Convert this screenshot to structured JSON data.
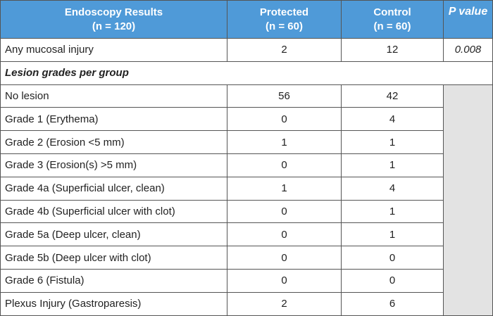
{
  "header": {
    "col1": {
      "line1": "Endoscopy Results",
      "line2": "(n = 120)"
    },
    "col2": {
      "line1": "Protected",
      "line2": "(n = 60)"
    },
    "col3": {
      "line1": "Control",
      "line2": "(n = 60)"
    },
    "col4": {
      "line1": "P value"
    }
  },
  "summary_row": {
    "label": "Any mucosal injury",
    "protected": "2",
    "control": "12",
    "p_value": "0.008"
  },
  "section_label": "Lesion grades per group",
  "rows": [
    {
      "label": "No lesion",
      "protected": "56",
      "control": "42"
    },
    {
      "label": "Grade 1 (Erythema)",
      "protected": "0",
      "control": "4"
    },
    {
      "label": "Grade 2 (Erosion <5 mm)",
      "protected": "1",
      "control": "1"
    },
    {
      "label": "Grade 3 (Erosion(s) >5 mm)",
      "protected": "0",
      "control": "1"
    },
    {
      "label": "Grade 4a (Superficial ulcer, clean)",
      "protected": "1",
      "control": "4"
    },
    {
      "label": "Grade 4b (Superficial ulcer with clot)",
      "protected": "0",
      "control": "1"
    },
    {
      "label": "Grade 5a (Deep ulcer, clean)",
      "protected": "0",
      "control": "1"
    },
    {
      "label": "Grade 5b (Deep ulcer with clot)",
      "protected": "0",
      "control": "0"
    },
    {
      "label": "Grade 6 (Fistula)",
      "protected": "0",
      "control": "0"
    },
    {
      "label": "Plexus Injury (Gastroparesis)",
      "protected": "2",
      "control": "6"
    }
  ],
  "colors": {
    "header_bg": "#4f9ad8",
    "header_text": "#ffffff",
    "shaded_bg": "#e3e3e3",
    "border": "#555555"
  }
}
